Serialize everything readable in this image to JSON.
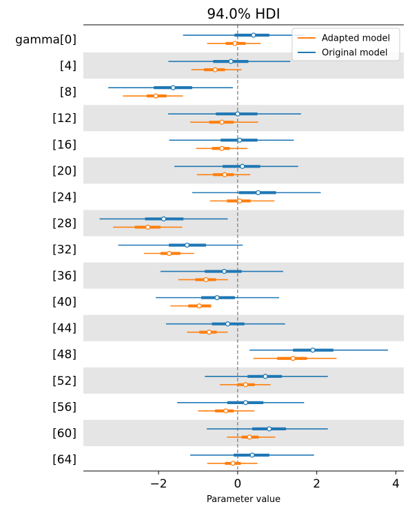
{
  "chart_data": {
    "type": "forest",
    "title": "94.0% HDI",
    "xlabel": "Parameter value",
    "xlim": [
      -3.9,
      4.2
    ],
    "xticks": [
      -2,
      0,
      2,
      4
    ],
    "xtick_labels": [
      "−2",
      "0",
      "2",
      "4"
    ],
    "reference_line_x": 0,
    "row_labels": [
      "gamma[0]",
      "[4]",
      "[8]",
      "[12]",
      "[16]",
      "[20]",
      "[24]",
      "[28]",
      "[32]",
      "[36]",
      "[40]",
      "[44]",
      "[48]",
      "[52]",
      "[56]",
      "[60]",
      "[64]"
    ],
    "legend": {
      "position": "upper right",
      "entries": [
        "Adapted model",
        "Original model"
      ]
    },
    "colors": {
      "Original model": "#1f77b4",
      "Adapted model": "#ff7f0e",
      "band": "#e5e5e5"
    },
    "series": [
      {
        "name": "Original model",
        "hdi": [
          [
            -1.38,
            1.7
          ],
          [
            -1.75,
            1.33
          ],
          [
            -3.27,
            -0.12
          ],
          [
            -1.76,
            1.6
          ],
          [
            -1.73,
            1.42
          ],
          [
            -1.6,
            1.53
          ],
          [
            -1.15,
            2.1
          ],
          [
            -3.49,
            -0.25
          ],
          [
            -3.02,
            0.13
          ],
          [
            -1.95,
            1.15
          ],
          [
            -2.07,
            1.05
          ],
          [
            -1.81,
            1.2
          ],
          [
            0.3,
            3.8
          ],
          [
            -0.83,
            2.28
          ],
          [
            -1.53,
            1.68
          ],
          [
            -0.78,
            2.28
          ],
          [
            -1.2,
            1.93
          ]
        ],
        "iqr": [
          [
            -0.08,
            0.8
          ],
          [
            -0.62,
            0.27
          ],
          [
            -2.12,
            -1.15
          ],
          [
            -0.55,
            0.5
          ],
          [
            -0.43,
            0.5
          ],
          [
            -0.38,
            0.57
          ],
          [
            0.03,
            0.97
          ],
          [
            -2.34,
            -1.37
          ],
          [
            -1.74,
            -0.8
          ],
          [
            -0.83,
            0.1
          ],
          [
            -0.92,
            -0.07
          ],
          [
            -0.65,
            0.17
          ],
          [
            1.4,
            2.42
          ],
          [
            0.25,
            1.12
          ],
          [
            -0.26,
            0.65
          ],
          [
            0.37,
            1.22
          ],
          [
            -0.1,
            0.8
          ]
        ],
        "median": [
          0.4,
          -0.17,
          -1.63,
          0.0,
          0.05,
          0.12,
          0.52,
          -1.87,
          -1.28,
          -0.34,
          -0.52,
          -0.25,
          1.9,
          0.7,
          0.2,
          0.8,
          0.37
        ]
      },
      {
        "name": "Adapted model",
        "hdi": [
          [
            -0.77,
            0.58
          ],
          [
            -1.17,
            0.1
          ],
          [
            -2.9,
            -1.38
          ],
          [
            -1.2,
            0.52
          ],
          [
            -1.05,
            0.25
          ],
          [
            -1.03,
            0.32
          ],
          [
            -0.7,
            0.93
          ],
          [
            -3.15,
            -1.4
          ],
          [
            -2.37,
            -1.1
          ],
          [
            -1.5,
            -0.25
          ],
          [
            -1.7,
            -0.77
          ],
          [
            -1.28,
            -0.25
          ],
          [
            0.4,
            2.5
          ],
          [
            -0.45,
            0.83
          ],
          [
            -1.0,
            0.42
          ],
          [
            -0.27,
            0.95
          ],
          [
            -0.77,
            0.5
          ]
        ],
        "iqr": [
          [
            -0.3,
            0.2
          ],
          [
            -0.85,
            -0.32
          ],
          [
            -2.3,
            -1.8
          ],
          [
            -0.72,
            -0.1
          ],
          [
            -0.65,
            -0.2
          ],
          [
            -0.62,
            -0.1
          ],
          [
            -0.27,
            0.33
          ],
          [
            -2.6,
            -1.95
          ],
          [
            -1.95,
            -1.45
          ],
          [
            -1.07,
            -0.55
          ],
          [
            -1.25,
            -0.67
          ],
          [
            -0.97,
            -0.53
          ],
          [
            1.0,
            1.75
          ],
          [
            0.0,
            0.43
          ],
          [
            -0.57,
            -0.1
          ],
          [
            0.1,
            0.53
          ],
          [
            -0.32,
            0.08
          ]
        ],
        "median": [
          -0.07,
          -0.57,
          -2.07,
          -0.4,
          -0.4,
          -0.33,
          0.05,
          -2.27,
          -1.73,
          -0.8,
          -0.97,
          -0.72,
          1.4,
          0.2,
          -0.3,
          0.3,
          -0.12
        ]
      }
    ]
  }
}
